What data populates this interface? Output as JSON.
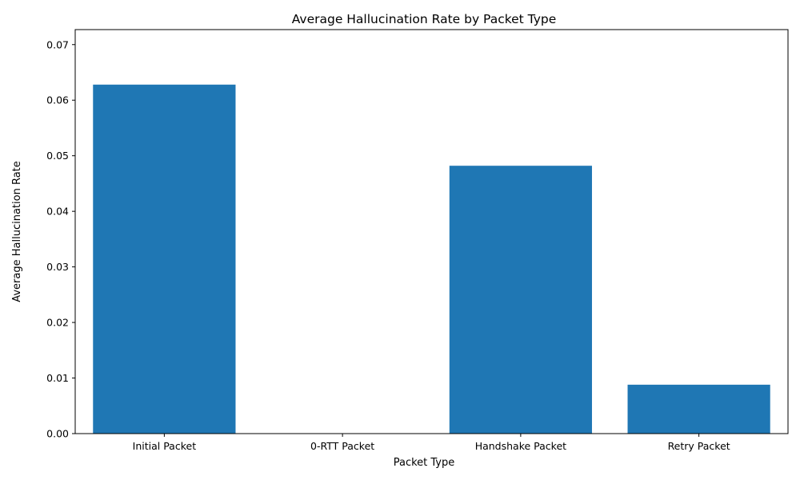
{
  "chart_data": {
    "type": "bar",
    "title": "Average Hallucination Rate by Packet Type",
    "xlabel": "Packet Type",
    "ylabel": "Average Hallucination Rate",
    "categories": [
      "Initial Packet",
      "0-RTT Packet",
      "Handshake Packet",
      "Retry Packet"
    ],
    "values": [
      0.0628,
      0.0,
      0.0482,
      0.0088
    ],
    "ylim": [
      0,
      0.0727
    ],
    "yticks": [
      0.0,
      0.01,
      0.02,
      0.03,
      0.04,
      0.05,
      0.06,
      0.07
    ],
    "ytick_labels": [
      "0.00",
      "0.01",
      "0.02",
      "0.03",
      "0.04",
      "0.05",
      "0.06",
      "0.07"
    ],
    "bar_color": "#1f77b4",
    "grid": false,
    "legend": "none"
  }
}
